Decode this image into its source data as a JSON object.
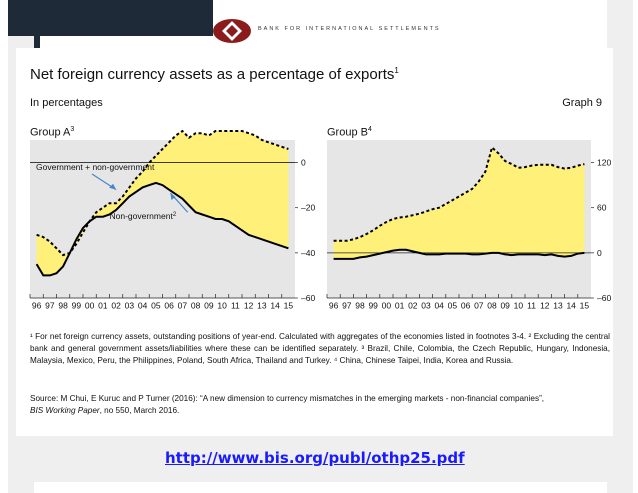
{
  "header": {
    "org_name": "BANK FOR INTERNATIONAL SETTLEMENTS"
  },
  "title": {
    "text": "Net foreign currency assets as a percentage of exports",
    "footnote": "1"
  },
  "subtitle": "In percentages",
  "graph_label": "Graph 9",
  "colors": {
    "fill": "#fff07a",
    "line": "#000000",
    "background": "#e6e6e6",
    "link": "#1a1aff"
  },
  "chart_data": [
    {
      "type": "area",
      "title": "Group A",
      "title_footnote": "3",
      "categories": [
        "96",
        "97",
        "98",
        "99",
        "00",
        "01",
        "02",
        "03",
        "04",
        "05",
        "06",
        "07",
        "08",
        "09",
        "10",
        "11",
        "12",
        "13",
        "14",
        "15"
      ],
      "x_tick_labels": [
        "96",
        "97",
        "98",
        "99",
        "00",
        "01",
        "02",
        "03",
        "04",
        "05",
        "06",
        "07",
        "08",
        "09",
        "10",
        "11",
        "12",
        "13",
        "14",
        "15"
      ],
      "y_axis_position": "right",
      "ylim": [
        -60,
        10
      ],
      "y_ticks": [
        0,
        -20,
        -40,
        -60
      ],
      "y_tick_labels": [
        "0",
        "–20",
        "–40",
        "–60"
      ],
      "grid": false,
      "zero_line": true,
      "series": [
        {
          "name": "Government + non-government",
          "style": "dashed",
          "x": [
            1996.0,
            1996.5,
            1997.0,
            1997.5,
            1998.0,
            1998.5,
            1999.0,
            1999.5,
            2000.0,
            2000.5,
            2001.0,
            2001.5,
            2002.0,
            2002.5,
            2003.0,
            2003.5,
            2004.0,
            2004.5,
            2005.0,
            2005.5,
            2006.0,
            2006.5,
            2007.0,
            2007.5,
            2008.0,
            2008.5,
            2009.0,
            2009.5,
            2010.0,
            2010.5,
            2011.0,
            2011.5,
            2012.0,
            2012.5,
            2013.0,
            2013.5,
            2014.0,
            2014.5,
            2015.0
          ],
          "values": [
            -32,
            -33,
            -35,
            -38,
            -41,
            -40,
            -36,
            -31,
            -26,
            -22,
            -20,
            -18,
            -18,
            -15,
            -11,
            -7,
            -4,
            0,
            3,
            6,
            9,
            12,
            14,
            11,
            13,
            13,
            12,
            14,
            14,
            14,
            14,
            14,
            13,
            12,
            10,
            9,
            8,
            7,
            6
          ]
        },
        {
          "name": "Non-government",
          "footnote": "2",
          "style": "solid",
          "x": [
            1996.0,
            1996.5,
            1997.0,
            1997.5,
            1998.0,
            1998.5,
            1999.0,
            1999.5,
            2000.0,
            2000.5,
            2001.0,
            2001.5,
            2002.0,
            2002.5,
            2003.0,
            2003.5,
            2004.0,
            2004.5,
            2005.0,
            2005.5,
            2006.0,
            2006.5,
            2007.0,
            2007.5,
            2008.0,
            2008.5,
            2009.0,
            2009.5,
            2010.0,
            2010.5,
            2011.0,
            2011.5,
            2012.0,
            2012.5,
            2013.0,
            2013.5,
            2014.0,
            2014.5,
            2015.0
          ],
          "values": [
            -45,
            -50,
            -50,
            -49,
            -46,
            -40,
            -34,
            -29,
            -26,
            -24,
            -24,
            -23,
            -21,
            -18,
            -15,
            -13,
            -11,
            -10,
            -9,
            -10,
            -12,
            -14,
            -16,
            -19,
            -22,
            -23,
            -24,
            -25,
            -25,
            -26,
            -28,
            -30,
            -32,
            -33,
            -34,
            -35,
            -36,
            -37,
            -38
          ]
        }
      ],
      "annotations": [
        "Government + non-government",
        "Non-government"
      ],
      "annotation_footnote": "2"
    },
    {
      "type": "area",
      "title": "Group B",
      "title_footnote": "4",
      "categories": [
        "96",
        "97",
        "98",
        "99",
        "00",
        "01",
        "02",
        "03",
        "04",
        "05",
        "06",
        "07",
        "08",
        "09",
        "10",
        "11",
        "12",
        "13",
        "14",
        "15"
      ],
      "x_tick_labels": [
        "96",
        "97",
        "98",
        "99",
        "00",
        "01",
        "02",
        "03",
        "04",
        "05",
        "06",
        "07",
        "08",
        "09",
        "10",
        "11",
        "12",
        "13",
        "14",
        "15"
      ],
      "y_axis_position": "right",
      "ylim": [
        -60,
        150
      ],
      "y_ticks": [
        120,
        60,
        0,
        -60
      ],
      "y_tick_labels": [
        "120",
        "60",
        "0",
        "–60"
      ],
      "grid": false,
      "zero_line": true,
      "series": [
        {
          "name": "Government + non-government",
          "style": "dashed",
          "x": [
            1996.0,
            1996.5,
            1997.0,
            1997.5,
            1998.0,
            1998.5,
            1999.0,
            1999.5,
            2000.0,
            2000.5,
            2001.0,
            2001.5,
            2002.0,
            2002.5,
            2003.0,
            2003.5,
            2004.0,
            2004.5,
            2005.0,
            2005.5,
            2006.0,
            2006.5,
            2007.0,
            2007.5,
            2008.0,
            2008.5,
            2009.0,
            2009.5,
            2010.0,
            2010.5,
            2011.0,
            2011.5,
            2012.0,
            2012.5,
            2013.0,
            2013.5,
            2014.0,
            2014.5,
            2015.0
          ],
          "values": [
            16,
            16,
            16,
            18,
            21,
            25,
            30,
            36,
            41,
            45,
            47,
            48,
            50,
            52,
            55,
            58,
            60,
            65,
            70,
            75,
            80,
            85,
            95,
            108,
            140,
            132,
            122,
            118,
            113,
            114,
            116,
            117,
            117,
            117,
            114,
            112,
            113,
            116,
            118
          ]
        },
        {
          "name": "Non-government",
          "style": "solid",
          "x": [
            1996.0,
            1996.5,
            1997.0,
            1997.5,
            1998.0,
            1998.5,
            1999.0,
            1999.5,
            2000.0,
            2000.5,
            2001.0,
            2001.5,
            2002.0,
            2002.5,
            2003.0,
            2003.5,
            2004.0,
            2004.5,
            2005.0,
            2005.5,
            2006.0,
            2006.5,
            2007.0,
            2007.5,
            2008.0,
            2008.5,
            2009.0,
            2009.5,
            2010.0,
            2010.5,
            2011.0,
            2011.5,
            2012.0,
            2012.5,
            2013.0,
            2013.5,
            2014.0,
            2014.5,
            2015.0
          ],
          "values": [
            -8,
            -8,
            -8,
            -8,
            -6,
            -5,
            -3,
            -1,
            1,
            3,
            4,
            4,
            2,
            0,
            -2,
            -2,
            -2,
            -1,
            -1,
            -1,
            -1,
            -2,
            -2,
            -1,
            0,
            0,
            -2,
            -3,
            -2,
            -2,
            -2,
            -2,
            -3,
            -2,
            -4,
            -5,
            -4,
            -1,
            0
          ]
        }
      ]
    }
  ],
  "footnotes": [
    "¹  For net foreign currency assets, outstanding positions of year-end. Calculated with aggregates of the economies listed in footnotes 3-4.   ²  Excluding the central bank and general government assets/liabilities where these can be identified separately.   ³  Brazil, Chile, Colombia, the Czech Republic, Hungary, Indonesia, Malaysia, Mexico, Peru, the Philippines, Poland, South Africa, Thailand and Turkey.   ⁴  China, Chinese Taipei, India, Korea and Russia."
  ],
  "source": {
    "prefix": "Source: M Chui, E Kuruc and P Turner (2016): “A new dimension to currency mismatches in the emerging markets - non-financial companies”,",
    "italic": "BIS Working Paper",
    "suffix": ", no 550, March 2016."
  },
  "link": "http://www.bis.org/publ/othp25.pdf"
}
